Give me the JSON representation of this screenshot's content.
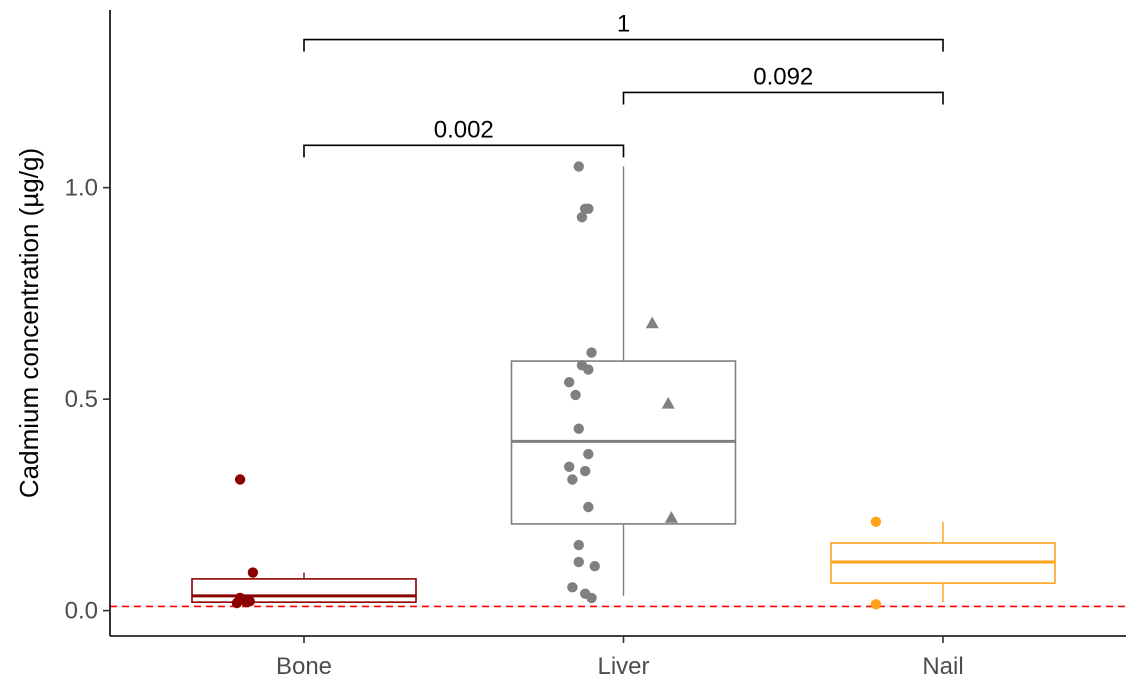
{
  "chart_data": {
    "type": "box",
    "title": "",
    "xlabel": "",
    "ylabel": "Cadmium concentration (µg/g)",
    "ylim": [
      -0.06,
      1.42
    ],
    "yticks": [
      {
        "value": 0.0,
        "label": "0.0"
      },
      {
        "value": 0.5,
        "label": "0.5"
      },
      {
        "value": 1.0,
        "label": "1.0"
      }
    ],
    "grid": false,
    "legend": "none",
    "categories": [
      "Bone",
      "Liver",
      "Nail"
    ],
    "reference_line": {
      "value": 0.01,
      "color": "#ff0000",
      "style": "dashed"
    },
    "groups": [
      {
        "name": "Bone",
        "color": "#8b0000",
        "box": {
          "min": 0.02,
          "q1": 0.02,
          "median": 0.035,
          "q3": 0.075,
          "max": 0.09
        },
        "points": [
          {
            "offset": -0.2,
            "y": 0.31,
            "shape": "circle"
          },
          {
            "offset": -0.16,
            "y": 0.09,
            "shape": "circle"
          },
          {
            "offset": -0.2,
            "y": 0.03,
            "shape": "circle"
          },
          {
            "offset": -0.18,
            "y": 0.02,
            "shape": "circle"
          },
          {
            "offset": -0.17,
            "y": 0.022,
            "shape": "circle"
          },
          {
            "offset": -0.21,
            "y": 0.018,
            "shape": "circle"
          }
        ]
      },
      {
        "name": "Liver",
        "color": "#808080",
        "box": {
          "min": 0.035,
          "q1": 0.205,
          "median": 0.4,
          "q3": 0.59,
          "max": 1.05
        },
        "points": [
          {
            "offset": -0.14,
            "y": 1.05,
            "shape": "circle"
          },
          {
            "offset": -0.12,
            "y": 0.95,
            "shape": "circle"
          },
          {
            "offset": -0.11,
            "y": 0.95,
            "shape": "circle"
          },
          {
            "offset": -0.13,
            "y": 0.93,
            "shape": "circle"
          },
          {
            "offset": -0.1,
            "y": 0.61,
            "shape": "circle"
          },
          {
            "offset": -0.13,
            "y": 0.58,
            "shape": "circle"
          },
          {
            "offset": -0.11,
            "y": 0.57,
            "shape": "circle"
          },
          {
            "offset": -0.17,
            "y": 0.54,
            "shape": "circle"
          },
          {
            "offset": -0.15,
            "y": 0.51,
            "shape": "circle"
          },
          {
            "offset": -0.14,
            "y": 0.43,
            "shape": "circle"
          },
          {
            "offset": -0.11,
            "y": 0.37,
            "shape": "circle"
          },
          {
            "offset": -0.17,
            "y": 0.34,
            "shape": "circle"
          },
          {
            "offset": -0.12,
            "y": 0.33,
            "shape": "circle"
          },
          {
            "offset": -0.16,
            "y": 0.31,
            "shape": "circle"
          },
          {
            "offset": -0.11,
            "y": 0.245,
            "shape": "circle"
          },
          {
            "offset": -0.14,
            "y": 0.155,
            "shape": "circle"
          },
          {
            "offset": -0.14,
            "y": 0.115,
            "shape": "circle"
          },
          {
            "offset": -0.09,
            "y": 0.105,
            "shape": "circle"
          },
          {
            "offset": -0.16,
            "y": 0.055,
            "shape": "circle"
          },
          {
            "offset": -0.12,
            "y": 0.04,
            "shape": "circle"
          },
          {
            "offset": -0.1,
            "y": 0.03,
            "shape": "circle"
          },
          {
            "offset": 0.09,
            "y": 0.68,
            "shape": "triangle"
          },
          {
            "offset": 0.14,
            "y": 0.49,
            "shape": "triangle"
          },
          {
            "offset": 0.15,
            "y": 0.22,
            "shape": "triangle"
          }
        ]
      },
      {
        "name": "Nail",
        "color": "#ffa31a",
        "box": {
          "min": 0.02,
          "q1": 0.065,
          "median": 0.115,
          "q3": 0.16,
          "max": 0.21
        },
        "points": [
          {
            "offset": -0.21,
            "y": 0.21,
            "shape": "circle"
          },
          {
            "offset": -0.21,
            "y": 0.015,
            "shape": "circle"
          }
        ]
      }
    ],
    "comparisons": [
      {
        "from": "Bone",
        "to": "Liver",
        "y": 1.1,
        "label": "0.002"
      },
      {
        "from": "Liver",
        "to": "Nail",
        "y": 1.225,
        "label": "0.092"
      },
      {
        "from": "Bone",
        "to": "Nail",
        "y": 1.35,
        "label": "1"
      }
    ]
  }
}
